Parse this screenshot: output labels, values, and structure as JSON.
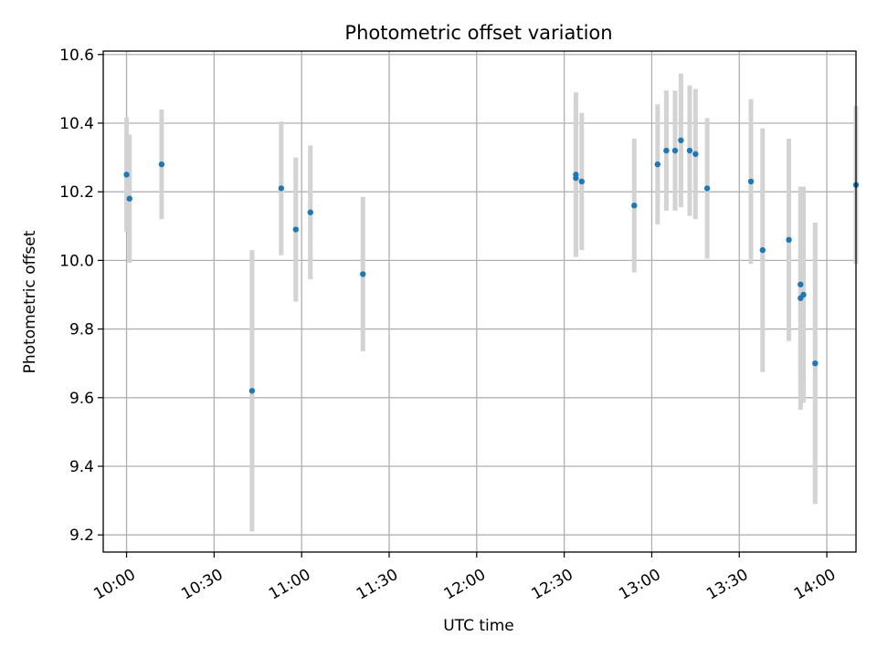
{
  "chart_data": {
    "type": "scatter",
    "title": "Photometric offset variation",
    "xlabel": "UTC time",
    "ylabel": "Photometric offset",
    "xlim": [
      "09:52",
      "14:10"
    ],
    "ylim": [
      9.15,
      10.61
    ],
    "x_ticks": [
      "10:00",
      "10:30",
      "11:00",
      "11:30",
      "12:00",
      "12:30",
      "13:00",
      "13:30",
      "14:00"
    ],
    "y_ticks": [
      "9.2",
      "9.4",
      "9.6",
      "9.8",
      "10.0",
      "10.2",
      "10.4",
      "10.6"
    ],
    "grid": true,
    "colors": {
      "point": "#1f77b4",
      "errorbar": "#d3d3d3",
      "grid": "#b0b0b0"
    },
    "points": [
      {
        "x": "10:00",
        "y": 10.25,
        "err": 0.167
      },
      {
        "x": "10:01",
        "y": 10.18,
        "err": 0.187
      },
      {
        "x": "10:12",
        "y": 10.28,
        "err": 0.16
      },
      {
        "x": "10:43",
        "y": 9.62,
        "err": 0.41
      },
      {
        "x": "10:53",
        "y": 10.21,
        "err": 0.195
      },
      {
        "x": "10:58",
        "y": 10.09,
        "err": 0.21
      },
      {
        "x": "11:03",
        "y": 10.14,
        "err": 0.195
      },
      {
        "x": "11:21",
        "y": 9.96,
        "err": 0.225
      },
      {
        "x": "12:34",
        "y": 10.25,
        "err": 0.24
      },
      {
        "x": "12:34",
        "y": 10.24,
        "err": 0.22
      },
      {
        "x": "12:36",
        "y": 10.23,
        "err": 0.2
      },
      {
        "x": "12:54",
        "y": 10.16,
        "err": 0.195
      },
      {
        "x": "13:02",
        "y": 10.28,
        "err": 0.175
      },
      {
        "x": "13:05",
        "y": 10.32,
        "err": 0.175
      },
      {
        "x": "13:08",
        "y": 10.32,
        "err": 0.175
      },
      {
        "x": "13:10",
        "y": 10.35,
        "err": 0.195
      },
      {
        "x": "13:13",
        "y": 10.32,
        "err": 0.19
      },
      {
        "x": "13:15",
        "y": 10.31,
        "err": 0.19
      },
      {
        "x": "13:19",
        "y": 10.21,
        "err": 0.205
      },
      {
        "x": "13:34",
        "y": 10.23,
        "err": 0.24
      },
      {
        "x": "13:38",
        "y": 10.03,
        "err": 0.355
      },
      {
        "x": "13:47",
        "y": 10.06,
        "err": 0.295
      },
      {
        "x": "13:51",
        "y": 9.93,
        "err": 0.27
      },
      {
        "x": "13:51",
        "y": 9.89,
        "err": 0.325
      },
      {
        "x": "13:52",
        "y": 9.9,
        "err": 0.315
      },
      {
        "x": "13:56",
        "y": 9.7,
        "err": 0.41
      },
      {
        "x": "14:10",
        "y": 10.22,
        "err": 0.23
      }
    ]
  }
}
